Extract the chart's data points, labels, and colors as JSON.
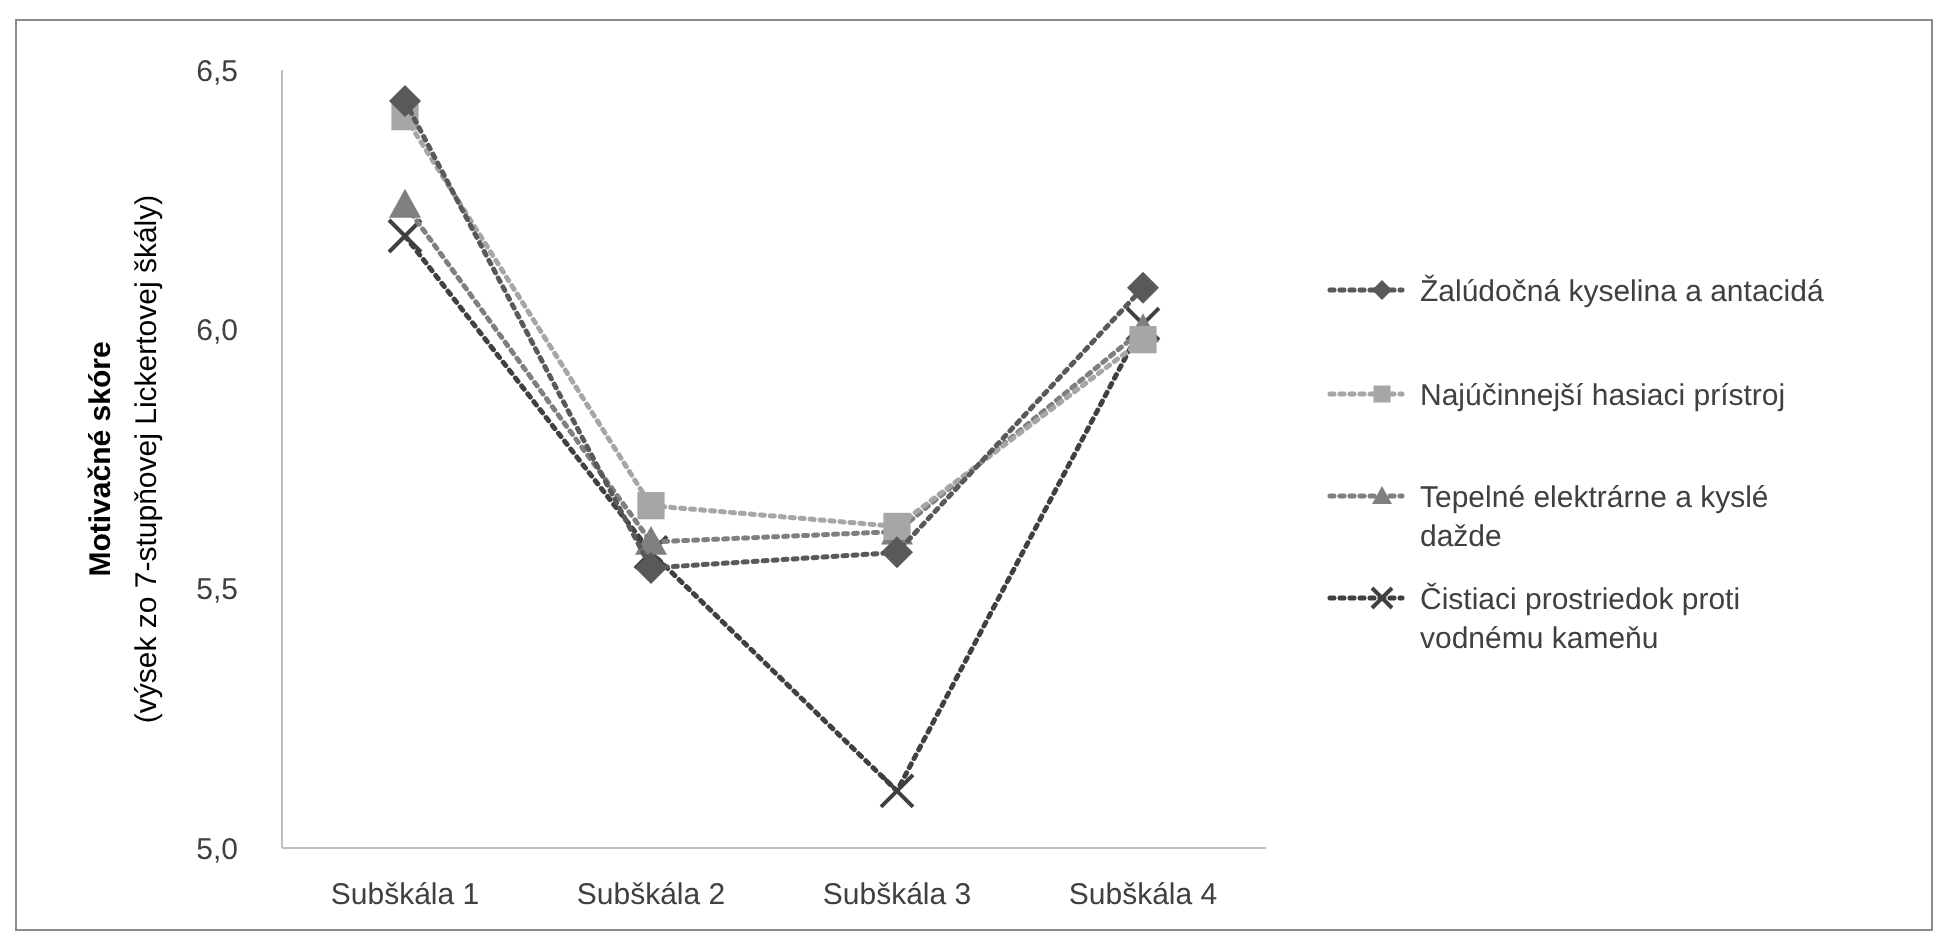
{
  "chart_data": {
    "type": "line",
    "ylabel": "Motivačné skóre",
    "subtitle": "(výsek zo 7-stupňovej Lickertovej škály)",
    "categories": [
      "Subškála 1",
      "Subškála 2",
      "Subškála 3",
      "Subškála 4"
    ],
    "series": [
      {
        "name": "Žalúdočná kyselina a antacidá",
        "color": "#595959",
        "marker": "diamond",
        "values": [
          6.44,
          5.54,
          5.57,
          6.08
        ]
      },
      {
        "name": "Najúčinnejší hasiaci prístroj",
        "color": "#a6a6a6",
        "marker": "square",
        "values": [
          6.41,
          5.66,
          5.62,
          5.98
        ]
      },
      {
        "name": "Tepelné elektrárne a kyslé dažde",
        "color": "#7f7f7f",
        "marker": "triangle",
        "values": [
          6.24,
          5.59,
          5.61,
          6.0
        ]
      },
      {
        "name": "Čistiaci prostriedok proti vodnému kameňu",
        "color": "#404040",
        "marker": "cross",
        "values": [
          6.18,
          5.57,
          5.11,
          6.01
        ]
      }
    ],
    "ylim": [
      5.0,
      6.5
    ],
    "yticks": [
      {
        "value": 5.0,
        "label": "5,0"
      },
      {
        "value": 5.5,
        "label": "5,5"
      },
      {
        "value": 6.0,
        "label": "6,0"
      },
      {
        "value": 6.5,
        "label": "6,5"
      }
    ],
    "grid": false,
    "legend": "right",
    "line_style": "dotted"
  }
}
